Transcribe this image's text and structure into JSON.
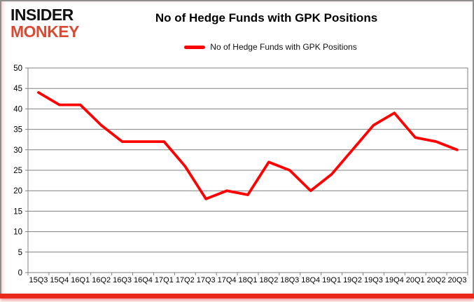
{
  "header": {
    "logo": {
      "line1": "INSIDER",
      "line2": "MONKEY"
    },
    "title": "No of Hedge Funds with GPK Positions",
    "legend": {
      "label": "No of Hedge Funds with GPK Positions"
    }
  },
  "colors": {
    "line": "#ff0000",
    "grid": "#808080",
    "axis_text": "#000000",
    "logo_accent": "#d94a32",
    "bottom_bar": "#e8291c"
  },
  "chart_data": {
    "type": "line",
    "title": "No of Hedge Funds with GPK Positions",
    "categories": [
      "15Q3",
      "15Q4",
      "16Q1",
      "16Q2",
      "16Q3",
      "16Q4",
      "17Q1",
      "17Q2",
      "17Q3",
      "17Q4",
      "18Q1",
      "18Q2",
      "18Q3",
      "18Q4",
      "19Q1",
      "19Q2",
      "19Q3",
      "19Q4",
      "20Q1",
      "20Q2",
      "20Q3"
    ],
    "series": [
      {
        "name": "No of Hedge Funds with GPK Positions",
        "values": [
          44,
          41,
          41,
          36,
          32,
          32,
          32,
          26,
          18,
          20,
          19,
          27,
          25,
          20,
          24,
          30,
          36,
          39,
          33,
          32,
          30
        ]
      }
    ],
    "xlabel": "",
    "ylabel": "",
    "ylim": [
      0,
      50
    ],
    "ytick_step": 5,
    "grid": "horizontal",
    "legend_position": "top-center"
  }
}
